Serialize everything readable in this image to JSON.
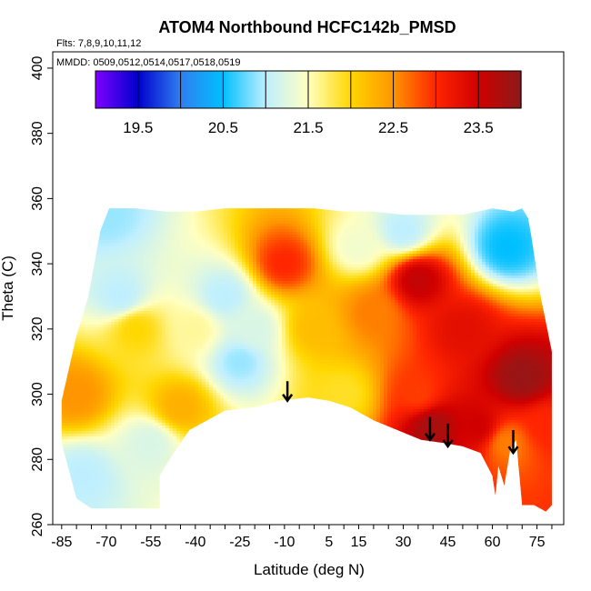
{
  "chart_data": {
    "type": "heatmap",
    "title": "ATOM4 Northbound HCFC142b_PMSD",
    "flights_note": "Flts: 7,8,9,10,11,12",
    "dates_note": "MMDD: 0509,0512,0514,0517,0518,0519",
    "xlabel": "Latitude (deg N)",
    "ylabel": "Theta (C)",
    "xlim": [
      -88,
      84
    ],
    "ylim": [
      260,
      405
    ],
    "x_ticks": [
      -85,
      -70,
      -55,
      -40,
      -25,
      -10,
      5,
      15,
      30,
      45,
      60,
      75
    ],
    "x_tick_labels": [
      "-85",
      "-70",
      "-55",
      "-40",
      "-25",
      "-10",
      "5",
      "15",
      "30",
      "45",
      "60",
      "75"
    ],
    "y_ticks": [
      260,
      280,
      300,
      320,
      340,
      360,
      380,
      400
    ],
    "y_tick_labels": [
      "260",
      "280",
      "300",
      "320",
      "340",
      "360",
      "380",
      "400"
    ],
    "colorbar": {
      "range": [
        19,
        24
      ],
      "ticks": [
        19.5,
        20.5,
        21.5,
        22.5,
        23.5
      ],
      "tick_labels": [
        "19.5",
        "20.5",
        "21.5",
        "22.5",
        "23.5"
      ],
      "colors": [
        "#7f00ff",
        "#0000cd",
        "#2f7fef",
        "#00bfff",
        "#bfefff",
        "#ffffc0",
        "#ffd700",
        "#ff9500",
        "#ff2500",
        "#d00000",
        "#8b1a1a"
      ]
    },
    "lower_boundary": [
      [
        -85,
        285
      ],
      [
        -80,
        268
      ],
      [
        -75,
        265
      ],
      [
        -60,
        265
      ],
      [
        -52,
        265
      ],
      [
        -52,
        275
      ],
      [
        -48,
        281
      ],
      [
        -42,
        289
      ],
      [
        -30,
        295
      ],
      [
        -20,
        296
      ],
      [
        -12,
        298
      ],
      [
        -2,
        299
      ],
      [
        5,
        298
      ],
      [
        12,
        296
      ],
      [
        20,
        292
      ],
      [
        28,
        289
      ],
      [
        36,
        286
      ],
      [
        44,
        285
      ],
      [
        50,
        284
      ],
      [
        56,
        282
      ],
      [
        60,
        275
      ],
      [
        61,
        269
      ],
      [
        62,
        278
      ],
      [
        64,
        272
      ],
      [
        66,
        283
      ],
      [
        68,
        286
      ],
      [
        70,
        266
      ],
      [
        74,
        266
      ],
      [
        78,
        264
      ],
      [
        80,
        266
      ],
      [
        80,
        298
      ]
    ],
    "upper_boundary": [
      [
        -85,
        298
      ],
      [
        -80,
        318
      ],
      [
        -76,
        330
      ],
      [
        -72,
        350
      ],
      [
        -69,
        357
      ],
      [
        -60,
        357
      ],
      [
        -50,
        356
      ],
      [
        -40,
        356
      ],
      [
        -30,
        357
      ],
      [
        -20,
        357
      ],
      [
        -10,
        357
      ],
      [
        0,
        357
      ],
      [
        10,
        356
      ],
      [
        20,
        356
      ],
      [
        30,
        355
      ],
      [
        40,
        355
      ],
      [
        50,
        355
      ],
      [
        55,
        356
      ],
      [
        60,
        357
      ],
      [
        67,
        356
      ],
      [
        70,
        357
      ],
      [
        72,
        354
      ],
      [
        73,
        349
      ],
      [
        74,
        343
      ],
      [
        76,
        331
      ],
      [
        78,
        322
      ],
      [
        80,
        313
      ]
    ],
    "field_features": [
      {
        "lat": -60,
        "theta": 320,
        "value": 22.0
      },
      {
        "lat": -40,
        "theta": 320,
        "value": 21.6
      },
      {
        "lat": -20,
        "theta": 320,
        "value": 21.2
      },
      {
        "lat": -10,
        "theta": 340,
        "value": 23.0
      },
      {
        "lat": 0,
        "theta": 320,
        "value": 22.2
      },
      {
        "lat": 10,
        "theta": 300,
        "value": 21.9
      },
      {
        "lat": 35,
        "theta": 335,
        "value": 23.6
      },
      {
        "lat": 35,
        "theta": 300,
        "value": 22.9
      },
      {
        "lat": 40,
        "theta": 290,
        "value": 23.8
      },
      {
        "lat": 50,
        "theta": 320,
        "value": 23.3
      },
      {
        "lat": 55,
        "theta": 290,
        "value": 23.5
      },
      {
        "lat": 65,
        "theta": 345,
        "value": 20.5
      },
      {
        "lat": 70,
        "theta": 305,
        "value": 23.9
      },
      {
        "lat": 65,
        "theta": 285,
        "value": 22.6
      },
      {
        "lat": 30,
        "theta": 350,
        "value": 21.0
      },
      {
        "lat": 15,
        "theta": 345,
        "value": 21.4
      },
      {
        "lat": -70,
        "theta": 355,
        "value": 20.9
      },
      {
        "lat": -65,
        "theta": 330,
        "value": 21.0
      },
      {
        "lat": -80,
        "theta": 300,
        "value": 22.5
      },
      {
        "lat": -78,
        "theta": 275,
        "value": 21.0
      },
      {
        "lat": -30,
        "theta": 330,
        "value": 21.0
      },
      {
        "lat": -25,
        "theta": 310,
        "value": 20.9
      },
      {
        "lat": -45,
        "theta": 296,
        "value": 22.3
      },
      {
        "lat": -55,
        "theta": 285,
        "value": 21.2
      },
      {
        "lat": 78,
        "theta": 290,
        "value": 23.0
      },
      {
        "lat": 20,
        "theta": 325,
        "value": 22.6
      }
    ],
    "arrows": [
      {
        "lat": -9,
        "theta_top": 304,
        "theta_tip": 298
      },
      {
        "lat": 39,
        "theta_top": 293,
        "theta_tip": 286
      },
      {
        "lat": 45,
        "theta_top": 291,
        "theta_tip": 284
      },
      {
        "lat": 67,
        "theta_top": 289,
        "theta_tip": 282
      }
    ],
    "grid": false,
    "legend": "colorbar-top-inside"
  }
}
